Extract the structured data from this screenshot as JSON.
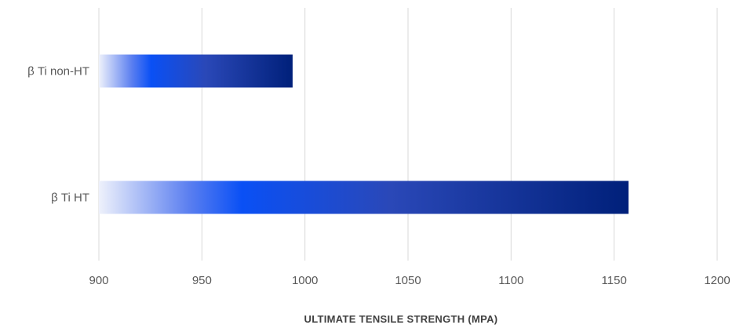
{
  "chart_data": {
    "type": "bar",
    "orientation": "horizontal",
    "categories": [
      "β Ti non-HT",
      "β Ti HT"
    ],
    "values": [
      994,
      1157
    ],
    "xlabel": "ULTIMATE TENSILE STRENGTH (MPA)",
    "ylabel": "",
    "xlim": [
      900,
      1200
    ],
    "xticks": [
      900,
      950,
      1000,
      1050,
      1100,
      1150,
      1200
    ],
    "grid": "vertical",
    "legend": "none",
    "colors": {
      "bar_gradient_start": "#eef1fb",
      "bar_gradient_mid": "#0a50f5",
      "bar_gradient_end": "#00207a",
      "grid": "#d9d9d9",
      "text": "#595959"
    }
  }
}
